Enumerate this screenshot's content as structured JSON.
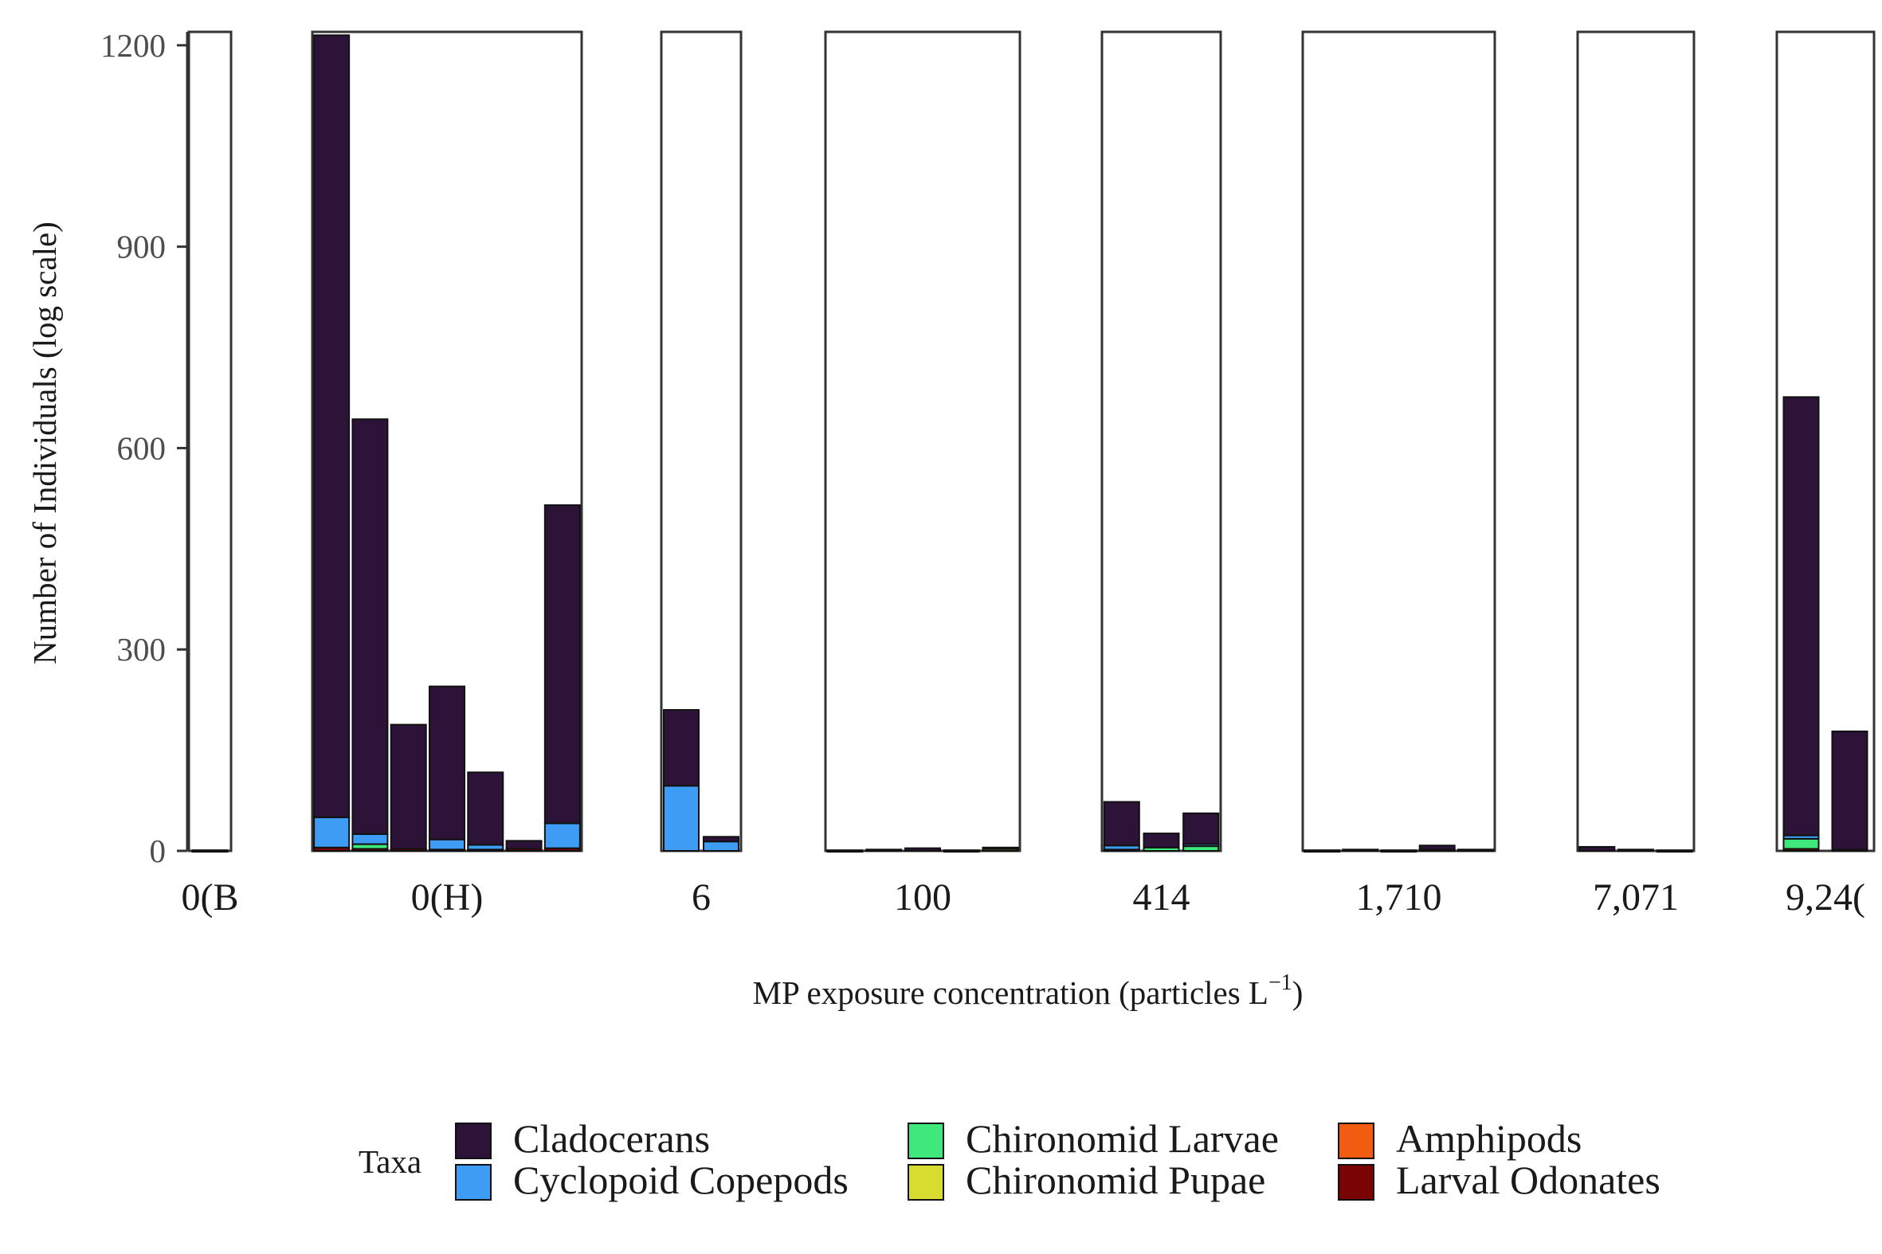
{
  "chart_data": {
    "type": "bar",
    "stacked": true,
    "faceted": true,
    "xlabel": "MP exposure concentration (particles L",
    "xlabel_sup": "−1",
    "xlabel_close": ")",
    "ylabel": "Number of Individuals (log scale)",
    "ylim": [
      0,
      1220
    ],
    "yticks": [
      0,
      300,
      600,
      900,
      1200
    ],
    "ytick_labels": [
      "0",
      "300",
      "600",
      "900",
      "1200"
    ],
    "grid": false,
    "series": [
      {
        "name": "Cladocerans",
        "color": "#2d1338"
      },
      {
        "name": "Cyclopoid Copepods",
        "color": "#3f9cf5"
      },
      {
        "name": "Chironomid Larvae",
        "color": "#3ee87a"
      },
      {
        "name": "Chironomid Pupae",
        "color": "#d9dc30"
      },
      {
        "name": "Amphipods",
        "color": "#f25c10"
      },
      {
        "name": "Larval Odonates",
        "color": "#7a0403"
      }
    ],
    "legend": {
      "title": "Taxa",
      "placement": "bottom"
    },
    "facets": [
      {
        "label": "0(B",
        "bars": [
          {
            "Cladocerans": 1,
            "Cyclopoid Copepods": 0,
            "Chironomid Larvae": 0,
            "Chironomid Pupae": 0,
            "Amphipods": 0,
            "Larval Odonates": 0
          }
        ]
      },
      {
        "label": "0(H)",
        "bars": [
          {
            "Cladocerans": 1165,
            "Cyclopoid Copepods": 45,
            "Chironomid Larvae": 0,
            "Chironomid Pupae": 0,
            "Amphipods": 0,
            "Larval Odonates": 5
          },
          {
            "Cladocerans": 618,
            "Cyclopoid Copepods": 15,
            "Chironomid Larvae": 7,
            "Chironomid Pupae": 0,
            "Amphipods": 0,
            "Larval Odonates": 3
          },
          {
            "Cladocerans": 185,
            "Cyclopoid Copepods": 0,
            "Chironomid Larvae": 0,
            "Chironomid Pupae": 0,
            "Amphipods": 0,
            "Larval Odonates": 3
          },
          {
            "Cladocerans": 228,
            "Cyclopoid Copepods": 15,
            "Chironomid Larvae": 0,
            "Chironomid Pupae": 0,
            "Amphipods": 0,
            "Larval Odonates": 2
          },
          {
            "Cladocerans": 108,
            "Cyclopoid Copepods": 7,
            "Chironomid Larvae": 0,
            "Chironomid Pupae": 0,
            "Amphipods": 0,
            "Larval Odonates": 2
          },
          {
            "Cladocerans": 12,
            "Cyclopoid Copepods": 0,
            "Chironomid Larvae": 0,
            "Chironomid Pupae": 0,
            "Amphipods": 0,
            "Larval Odonates": 3
          },
          {
            "Cladocerans": 474,
            "Cyclopoid Copepods": 37,
            "Chironomid Larvae": 0,
            "Chironomid Pupae": 0,
            "Amphipods": 0,
            "Larval Odonates": 4
          }
        ]
      },
      {
        "label": "6",
        "bars": [
          {
            "Cladocerans": 113,
            "Cyclopoid Copepods": 97,
            "Chironomid Larvae": 0,
            "Chironomid Pupae": 0,
            "Amphipods": 0,
            "Larval Odonates": 0
          },
          {
            "Cladocerans": 7,
            "Cyclopoid Copepods": 14,
            "Chironomid Larvae": 0,
            "Chironomid Pupae": 0,
            "Amphipods": 0,
            "Larval Odonates": 0
          }
        ]
      },
      {
        "label": "100",
        "bars": [
          {
            "Cladocerans": 1,
            "Cyclopoid Copepods": 0,
            "Chironomid Larvae": 0,
            "Chironomid Pupae": 0,
            "Amphipods": 0,
            "Larval Odonates": 0
          },
          {
            "Cladocerans": 2,
            "Cyclopoid Copepods": 0,
            "Chironomid Larvae": 0,
            "Chironomid Pupae": 0,
            "Amphipods": 0,
            "Larval Odonates": 0
          },
          {
            "Cladocerans": 4,
            "Cyclopoid Copepods": 0,
            "Chironomid Larvae": 0,
            "Chironomid Pupae": 0,
            "Amphipods": 0,
            "Larval Odonates": 0
          },
          {
            "Cladocerans": 1,
            "Cyclopoid Copepods": 0,
            "Chironomid Larvae": 0,
            "Chironomid Pupae": 0,
            "Amphipods": 0,
            "Larval Odonates": 0
          },
          {
            "Cladocerans": 2,
            "Cyclopoid Copepods": 0,
            "Chironomid Larvae": 0,
            "Chironomid Pupae": 3,
            "Amphipods": 0,
            "Larval Odonates": 0
          }
        ]
      },
      {
        "label": "414",
        "bars": [
          {
            "Cladocerans": 65,
            "Cyclopoid Copepods": 6,
            "Chironomid Larvae": 2,
            "Chironomid Pupae": 0,
            "Amphipods": 0,
            "Larval Odonates": 0
          },
          {
            "Cladocerans": 21,
            "Cyclopoid Copepods": 0,
            "Chironomid Larvae": 5,
            "Chironomid Pupae": 0,
            "Amphipods": 0,
            "Larval Odonates": 0
          },
          {
            "Cladocerans": 46,
            "Cyclopoid Copepods": 3,
            "Chironomid Larvae": 7,
            "Chironomid Pupae": 0,
            "Amphipods": 0,
            "Larval Odonates": 0
          }
        ]
      },
      {
        "label": "1,710",
        "bars": [
          {
            "Cladocerans": 1,
            "Cyclopoid Copepods": 0,
            "Chironomid Larvae": 0,
            "Chironomid Pupae": 0,
            "Amphipods": 0,
            "Larval Odonates": 0
          },
          {
            "Cladocerans": 2,
            "Cyclopoid Copepods": 0,
            "Chironomid Larvae": 0,
            "Chironomid Pupae": 0,
            "Amphipods": 0,
            "Larval Odonates": 0
          },
          {
            "Cladocerans": 1,
            "Cyclopoid Copepods": 0,
            "Chironomid Larvae": 0,
            "Chironomid Pupae": 0,
            "Amphipods": 0,
            "Larval Odonates": 0
          },
          {
            "Cladocerans": 6,
            "Cyclopoid Copepods": 2,
            "Chironomid Larvae": 0,
            "Chironomid Pupae": 0,
            "Amphipods": 0,
            "Larval Odonates": 0
          },
          {
            "Cladocerans": 2,
            "Cyclopoid Copepods": 0,
            "Chironomid Larvae": 0,
            "Chironomid Pupae": 0,
            "Amphipods": 0,
            "Larval Odonates": 0
          }
        ]
      },
      {
        "label": "7,071",
        "bars": [
          {
            "Cladocerans": 6,
            "Cyclopoid Copepods": 0,
            "Chironomid Larvae": 0,
            "Chironomid Pupae": 0,
            "Amphipods": 0,
            "Larval Odonates": 0
          },
          {
            "Cladocerans": 2,
            "Cyclopoid Copepods": 0,
            "Chironomid Larvae": 0,
            "Chironomid Pupae": 0,
            "Amphipods": 0,
            "Larval Odonates": 0
          },
          {
            "Cladocerans": 1,
            "Cyclopoid Copepods": 0,
            "Chironomid Larvae": 0,
            "Chironomid Pupae": 0,
            "Amphipods": 0,
            "Larval Odonates": 0
          }
        ]
      },
      {
        "label": "9,24(",
        "bars": [
          {
            "Cladocerans": 653,
            "Cyclopoid Copepods": 5,
            "Chironomid Larvae": 15,
            "Chironomid Pupae": 0,
            "Amphipods": 0,
            "Larval Odonates": 3
          },
          {
            "Cladocerans": 176,
            "Cyclopoid Copepods": 0,
            "Chironomid Larvae": 0,
            "Chironomid Pupae": 0,
            "Amphipods": 0,
            "Larval Odonates": 2
          }
        ]
      }
    ]
  }
}
